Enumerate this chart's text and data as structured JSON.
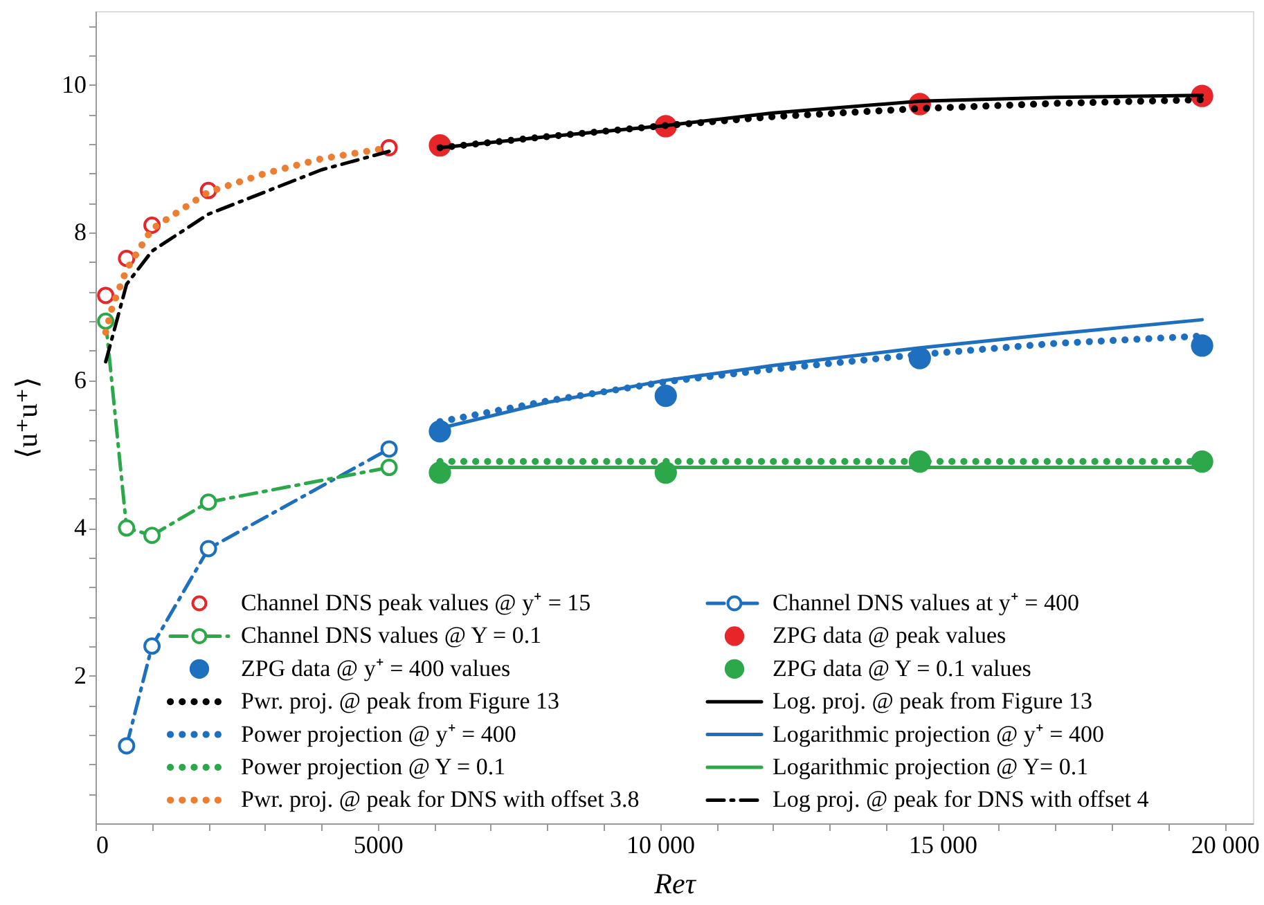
{
  "chart_data": {
    "type": "line",
    "xlabel": "Reτ",
    "ylabel": "⟨u⁺u⁺⟩",
    "xlim": [
      0,
      20500
    ],
    "ylim": [
      0,
      11
    ],
    "xticks": [
      0,
      {
        "value": 1000,
        "label": null
      },
      {
        "value": 2000,
        "label": null
      },
      {
        "value": 3000,
        "label": null
      },
      {
        "value": 4000,
        "label": null
      },
      5000,
      {
        "value": 6000,
        "label": null
      },
      {
        "value": 7000,
        "label": null
      },
      {
        "value": 8000,
        "label": null
      },
      {
        "value": 9000,
        "label": null
      },
      {
        "value": 10000,
        "label": "10 000"
      },
      {
        "value": 11000,
        "label": null
      },
      {
        "value": 12000,
        "label": null
      },
      {
        "value": 13000,
        "label": null
      },
      {
        "value": 14000,
        "label": null
      },
      {
        "value": 15000,
        "label": "15 000"
      },
      {
        "value": 16000,
        "label": null
      },
      {
        "value": 17000,
        "label": null
      },
      {
        "value": 18000,
        "label": null
      },
      {
        "value": 19000,
        "label": null
      },
      {
        "value": 20000,
        "label": "20 000"
      }
    ],
    "yticks": [
      {
        "value": 0.4,
        "label": null
      },
      {
        "value": 0.8,
        "label": null
      },
      {
        "value": 1.2,
        "label": null
      },
      {
        "value": 1.6,
        "label": null
      },
      2,
      {
        "value": 2.4,
        "label": null
      },
      {
        "value": 2.8,
        "label": null
      },
      {
        "value": 3.2,
        "label": null
      },
      {
        "value": 3.6,
        "label": null
      },
      4,
      {
        "value": 4.4,
        "label": null
      },
      {
        "value": 4.8,
        "label": null
      },
      {
        "value": 5.2,
        "label": null
      },
      {
        "value": 5.6,
        "label": null
      },
      6,
      {
        "value": 6.4,
        "label": null
      },
      {
        "value": 6.8,
        "label": null
      },
      {
        "value": 7.2,
        "label": null
      },
      {
        "value": 7.6,
        "label": null
      },
      8,
      {
        "value": 8.4,
        "label": null
      },
      {
        "value": 8.8,
        "label": null
      },
      {
        "value": 9.2,
        "label": null
      },
      {
        "value": 9.6,
        "label": null
      },
      10,
      {
        "value": 10.4,
        "label": null
      },
      {
        "value": 10.8,
        "label": null
      }
    ],
    "grid": false,
    "legend": "bottom",
    "series": [
      {
        "name": "Channel DNS peak values @ y⁺ = 15",
        "type": "scatter",
        "marker": "circle",
        "color": "#e8262a",
        "x": [
          180,
          550,
          1000,
          2000,
          5200
        ],
        "values": [
          7.15,
          7.65,
          8.1,
          8.57,
          9.15
        ]
      },
      {
        "name": "Channel DNS values at y⁺ = 400",
        "type": "line",
        "marker": "circle",
        "line_style": "dashed",
        "color": "#1f6fbf",
        "x": [
          550,
          1000,
          2000,
          5200
        ],
        "values": [
          1.05,
          2.4,
          3.72,
          5.07
        ]
      },
      {
        "name": "Channel DNS values @ Y = 0.1",
        "type": "line",
        "marker": "circle",
        "line_style": "dashed",
        "color": "#2ca84a",
        "x": [
          180,
          550,
          1000,
          2000,
          5200
        ],
        "values": [
          6.8,
          4.0,
          3.9,
          4.35,
          4.82
        ]
      },
      {
        "name": "ZPG data @ peak values",
        "type": "scatter",
        "color": "#e8262a",
        "x": [
          6100,
          10100,
          14600,
          19600
        ],
        "values": [
          9.18,
          9.44,
          9.74,
          9.85
        ]
      },
      {
        "name": "ZPG data @ y⁺ = 400 values",
        "type": "scatter",
        "color": "#1f6fbf",
        "x": [
          6100,
          10100,
          14600,
          19600
        ],
        "values": [
          5.31,
          5.79,
          6.3,
          6.47
        ]
      },
      {
        "name": "ZPG data @ Y = 0.1 values",
        "type": "scatter",
        "color": "#2ca84a",
        "x": [
          6100,
          10100,
          14600,
          19600
        ],
        "values": [
          4.75,
          4.75,
          4.9,
          4.9
        ]
      },
      {
        "name": "Pwr. proj. @ peak from Figure 13",
        "type": "line",
        "line_style": "dotted",
        "color": "#000000",
        "x": [
          6100,
          8000,
          10100,
          12000,
          14600,
          17000,
          19600
        ],
        "values": [
          9.15,
          9.3,
          9.45,
          9.57,
          9.68,
          9.75,
          9.8
        ]
      },
      {
        "name": "Log. proj. @ peak from Figure 13",
        "type": "line",
        "line_style": "solid",
        "color": "#000000",
        "x": [
          6100,
          8000,
          10100,
          12000,
          14600,
          17000,
          19600
        ],
        "values": [
          9.15,
          9.3,
          9.45,
          9.62,
          9.78,
          9.83,
          9.86
        ]
      },
      {
        "name": "Power projection @ y⁺ = 400",
        "type": "line",
        "line_style": "dotted",
        "color": "#1f6fbf",
        "x": [
          6100,
          8000,
          10100,
          12000,
          14600,
          17000,
          19600
        ],
        "values": [
          5.44,
          5.72,
          5.98,
          6.15,
          6.35,
          6.5,
          6.6
        ]
      },
      {
        "name": "Logarithmic projection @ y⁺ = 400",
        "type": "line",
        "line_style": "solid",
        "color": "#1f6fbf",
        "x": [
          6100,
          8000,
          10100,
          12000,
          14600,
          17000,
          19600
        ],
        "values": [
          5.35,
          5.7,
          6.0,
          6.2,
          6.44,
          6.63,
          6.82
        ]
      },
      {
        "name": "Power projection @ Y = 0.1",
        "type": "line",
        "line_style": "dotted",
        "color": "#2ca84a",
        "x": [
          6100,
          19600
        ],
        "values": [
          4.9,
          4.9
        ]
      },
      {
        "name": "Logarithmic projection @ Y= 0.1",
        "type": "line",
        "line_style": "solid",
        "color": "#2ca84a",
        "x": [
          6100,
          19600
        ],
        "values": [
          4.82,
          4.82
        ]
      },
      {
        "name": "Pwr. proj. @ peak for DNS with offset 3.8",
        "type": "line",
        "line_style": "dotted",
        "color": "#ed7d31",
        "x": [
          180,
          300,
          550,
          1000,
          2000,
          3000,
          4000,
          5200
        ],
        "values": [
          6.65,
          7.0,
          7.5,
          8.05,
          8.55,
          8.8,
          9.0,
          9.15
        ]
      },
      {
        "name": "Log proj. @ peak for DNS with offset 4",
        "type": "line",
        "line_style": "dashed",
        "color": "#000000",
        "x": [
          180,
          550,
          1000,
          2000,
          3000,
          4000,
          5200
        ],
        "values": [
          6.25,
          7.3,
          7.75,
          8.25,
          8.55,
          8.85,
          9.1
        ]
      }
    ]
  }
}
